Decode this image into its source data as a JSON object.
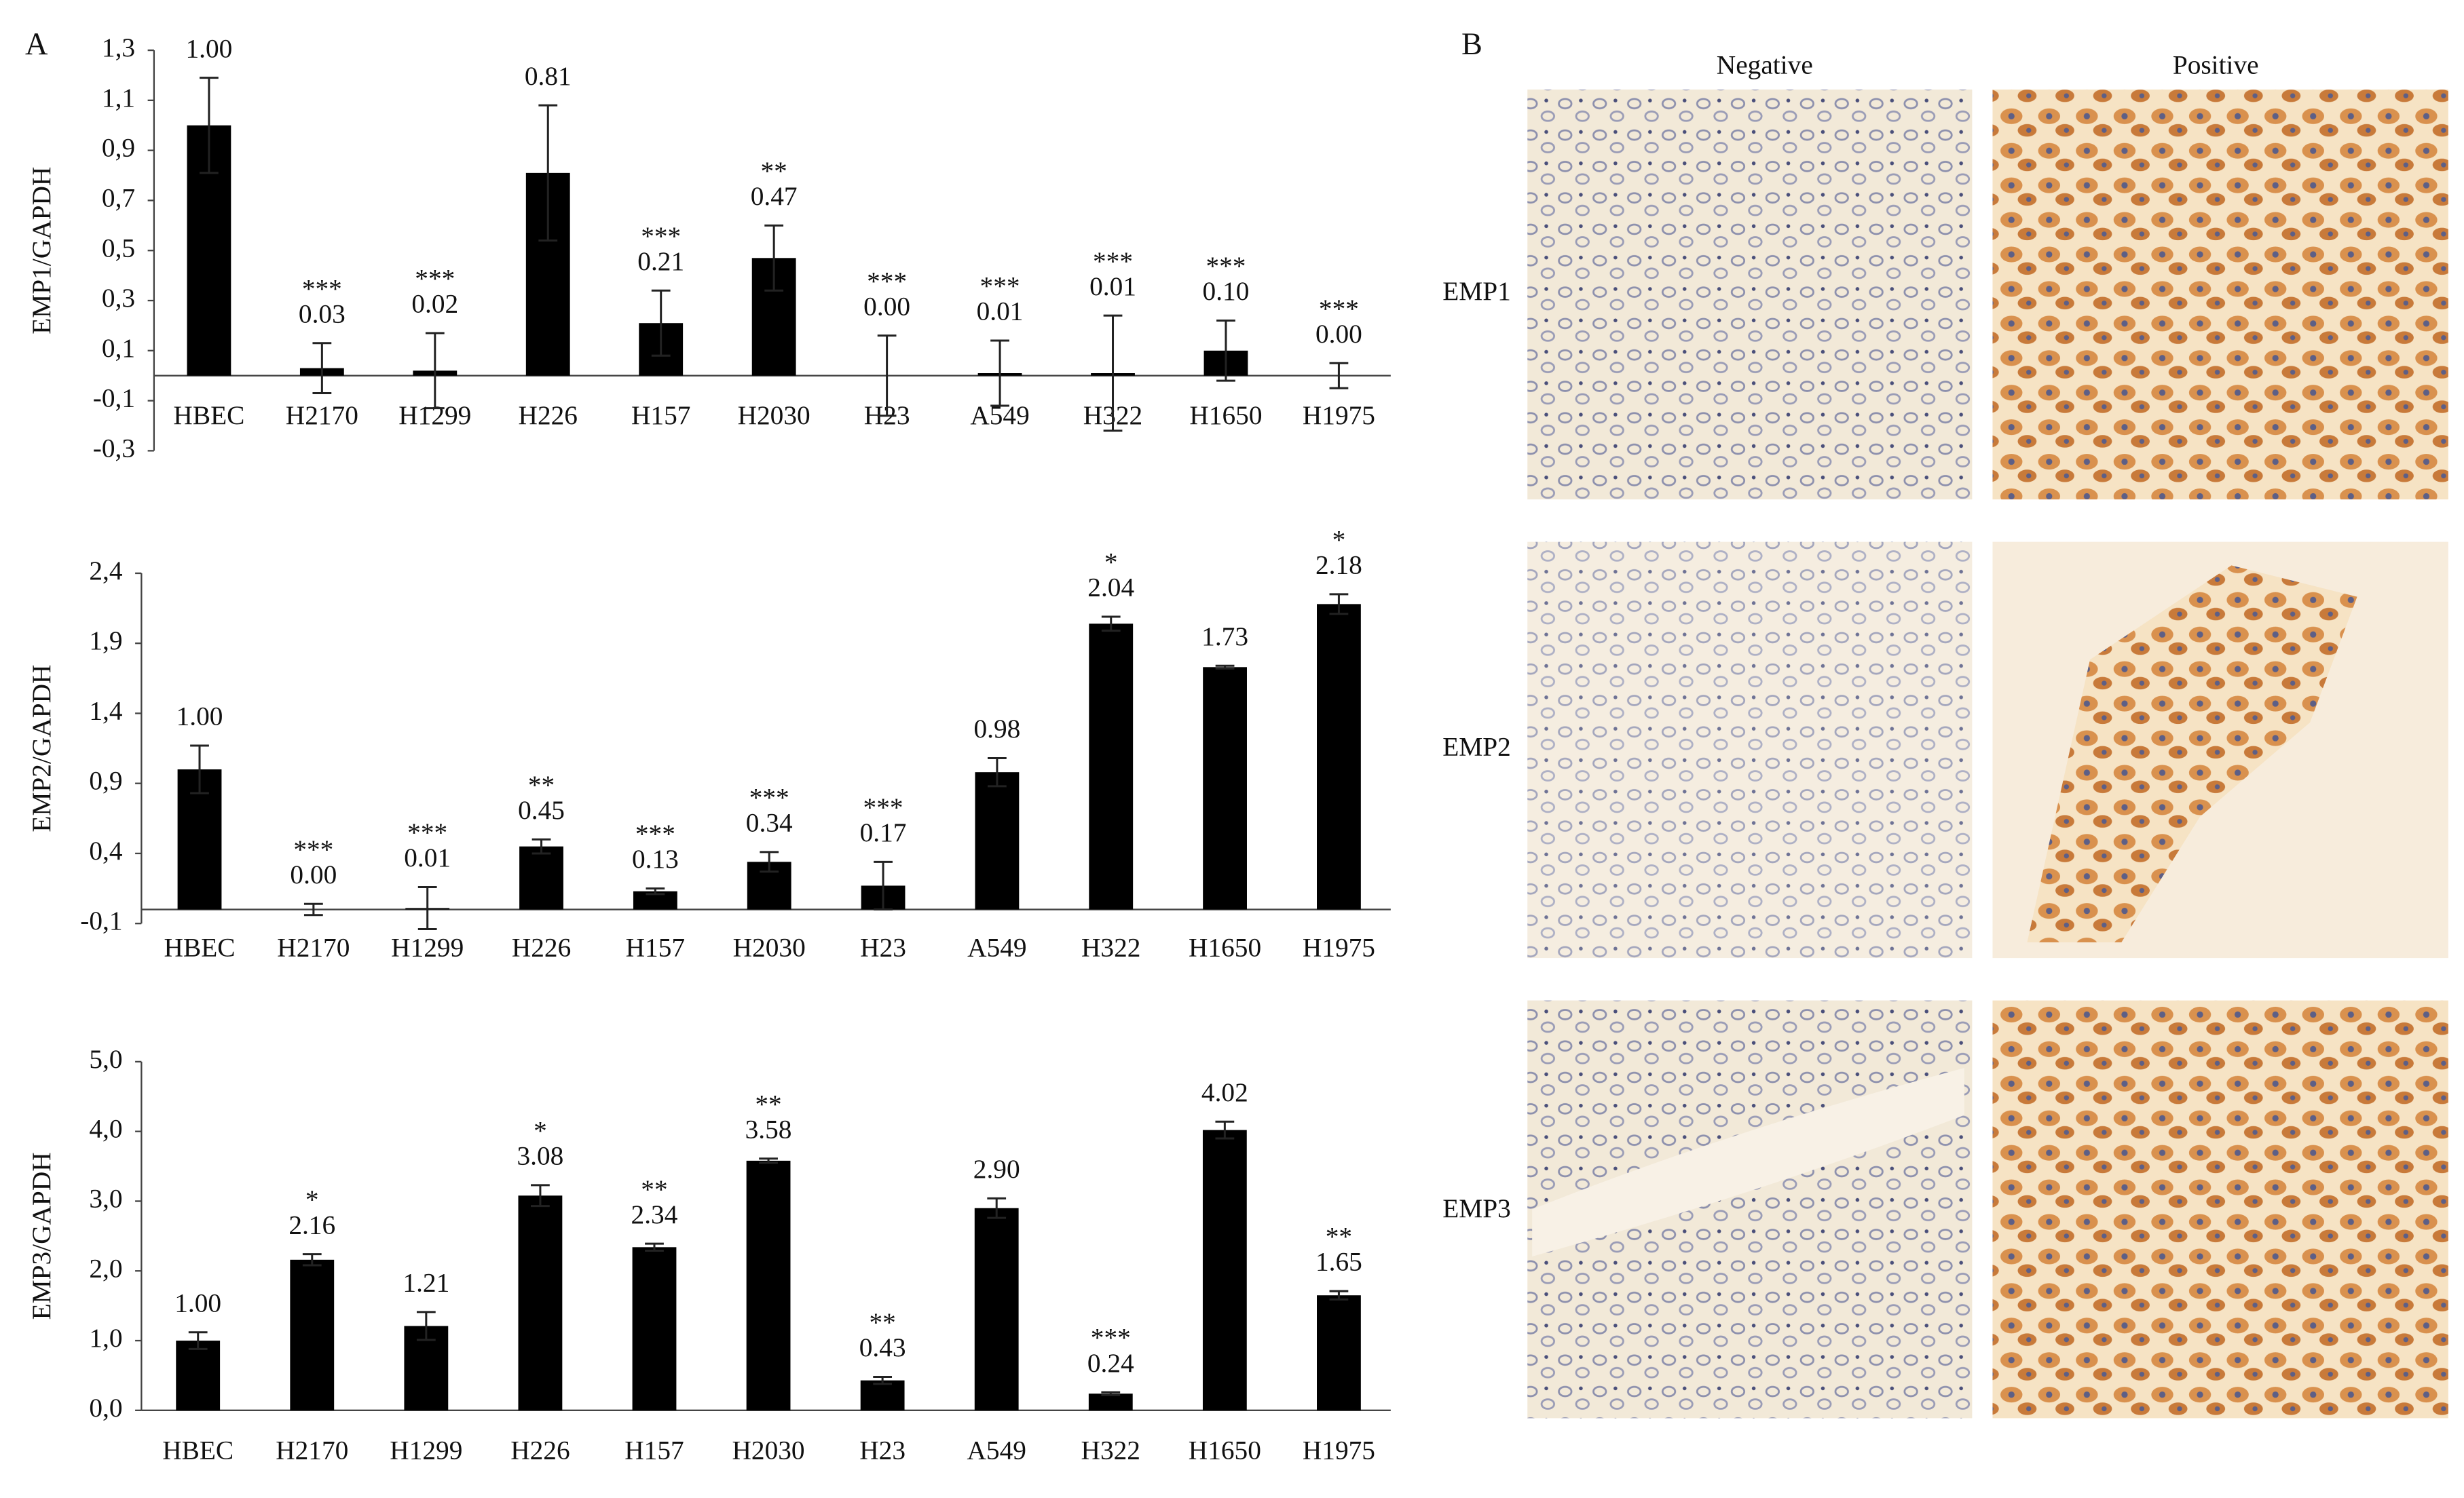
{
  "panel_a_label": "A",
  "panel_b": {
    "label": "B",
    "columns": [
      "Negative",
      "Positive"
    ],
    "rows": [
      "EMP1",
      "EMP2",
      "EMP3"
    ]
  },
  "chart_data": [
    {
      "type": "bar",
      "y_label": "EMP1/GAPDH",
      "color": "#000000",
      "categories": [
        "HBEC",
        "H2170",
        "H1299",
        "H226",
        "H157",
        "H2030",
        "H23",
        "A549",
        "H322",
        "H1650",
        "H1975"
      ],
      "values": [
        1,
        0.03,
        0.02,
        0.81,
        0.21,
        0.47,
        0,
        0.01,
        0.01,
        0.1,
        0
      ],
      "value_labels": [
        "1.00",
        "0.03",
        "0.02",
        "0.81",
        "0.21",
        "0.47",
        "0.00",
        "0.01",
        "0.01",
        "0.10",
        "0.00"
      ],
      "errors": [
        0.19,
        0.1,
        0.15,
        0.27,
        0.13,
        0.13,
        0.16,
        0.13,
        0.23,
        0.12,
        0.05
      ],
      "significance": [
        null,
        "***",
        "***",
        null,
        "***",
        "**",
        "***",
        "***",
        "***",
        "***",
        "***"
      ],
      "ylim": [
        -0.3,
        1.3
      ],
      "yticks": [
        {
          "value": -0.3,
          "label": "-0,3"
        },
        {
          "value": -0.1,
          "label": "-0,1"
        },
        {
          "value": 0.1,
          "label": "0,1"
        },
        {
          "value": 0.3,
          "label": "0,3"
        },
        {
          "value": 0.5,
          "label": "0,5"
        },
        {
          "value": 0.7,
          "label": "0,7"
        },
        {
          "value": 0.9,
          "label": "0,9"
        },
        {
          "value": 1.1,
          "label": "1,1"
        },
        {
          "value": 1.3,
          "label": "1,3"
        }
      ]
    },
    {
      "type": "bar",
      "y_label": "EMP2/GAPDH",
      "color": "#000000",
      "categories": [
        "HBEC",
        "H2170",
        "H1299",
        "H226",
        "H157",
        "H2030",
        "H23",
        "A549",
        "H322",
        "H1650",
        "H1975"
      ],
      "values": [
        1,
        0,
        0.01,
        0.45,
        0.13,
        0.34,
        0.17,
        0.98,
        2.04,
        1.73,
        2.18
      ],
      "value_labels": [
        "1.00",
        "0.00",
        "0.01",
        "0.45",
        "0.13",
        "0.34",
        "0.17",
        "0.98",
        "2.04",
        "1.73",
        "2.18"
      ],
      "errors": [
        0.17,
        0.04,
        0.15,
        0.05,
        0.02,
        0.07,
        0.17,
        0.1,
        0.05,
        0.01,
        0.07
      ],
      "significance": [
        null,
        "***",
        "***",
        "**",
        "***",
        "***",
        "***",
        null,
        "*",
        null,
        "*"
      ],
      "ylim": [
        -0.1,
        2.4
      ],
      "yticks": [
        {
          "value": -0.1,
          "label": "-0,1"
        },
        {
          "value": 0.4,
          "label": "0,4"
        },
        {
          "value": 0.9,
          "label": "0,9"
        },
        {
          "value": 1.4,
          "label": "1,4"
        },
        {
          "value": 1.9,
          "label": "1,9"
        },
        {
          "value": 2.4,
          "label": "2,4"
        }
      ]
    },
    {
      "type": "bar",
      "y_label": "EMP3/GAPDH",
      "color": "#000000",
      "categories": [
        "HBEC",
        "H2170",
        "H1299",
        "H226",
        "H157",
        "H2030",
        "H23",
        "A549",
        "H322",
        "H1650",
        "H1975"
      ],
      "values": [
        1,
        2.16,
        1.21,
        3.08,
        2.34,
        3.58,
        0.43,
        2.9,
        0.24,
        4.02,
        1.65
      ],
      "value_labels": [
        "1.00",
        "2.16",
        "1.21",
        "3.08",
        "2.34",
        "3.58",
        "0.43",
        "2.90",
        "0.24",
        "4.02",
        "1.65"
      ],
      "errors": [
        0.12,
        0.08,
        0.2,
        0.15,
        0.05,
        0.03,
        0.05,
        0.14,
        0.02,
        0.12,
        0.06
      ],
      "significance": [
        null,
        "*",
        null,
        "*",
        "**",
        "**",
        "**",
        null,
        "***",
        null,
        "**"
      ],
      "ylim": [
        0,
        5
      ],
      "yticks": [
        {
          "value": 0,
          "label": "0,0"
        },
        {
          "value": 1,
          "label": "1,0"
        },
        {
          "value": 2,
          "label": "2,0"
        },
        {
          "value": 3,
          "label": "3,0"
        },
        {
          "value": 4,
          "label": "4,0"
        },
        {
          "value": 5,
          "label": "5,0"
        }
      ]
    }
  ]
}
